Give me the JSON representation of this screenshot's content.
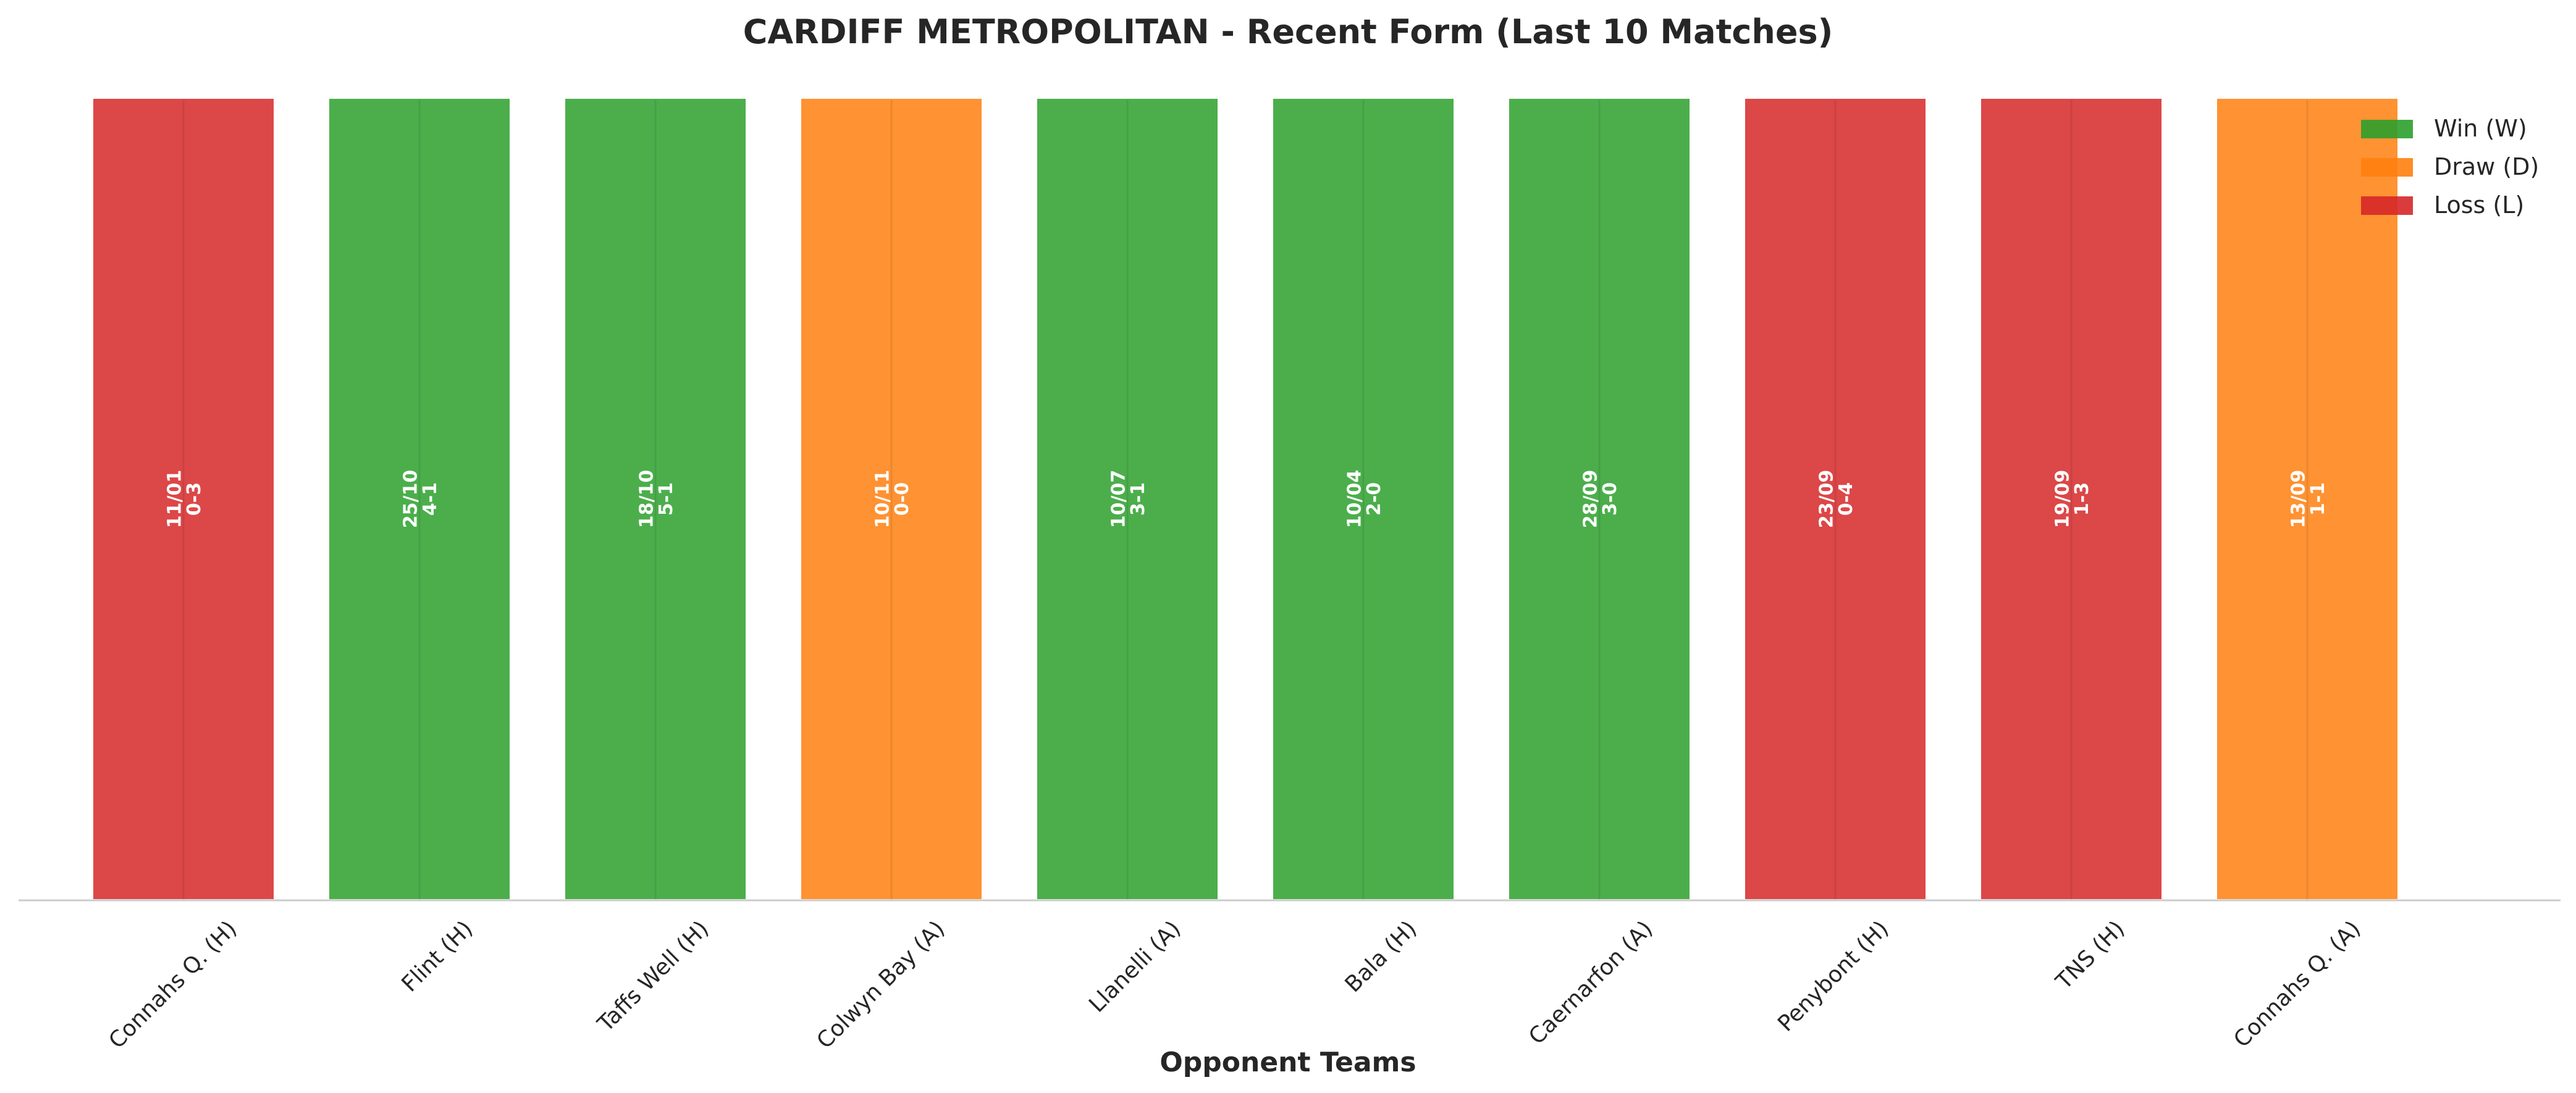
{
  "chart_data": {
    "type": "bar",
    "title": "CARDIFF METROPOLITAN - Recent Form (Last 10 Matches)",
    "xlabel": "Opponent Teams",
    "ylabel": "",
    "categories": [
      "Connahs Q. (H)",
      "Flint (H)",
      "Taffs Well (H)",
      "Colwyn Bay (A)",
      "Llanelli (A)",
      "Bala (H)",
      "Caernarfon (A)",
      "Penybont (H)",
      "TNS (H)",
      "Connahs Q. (A)"
    ],
    "values": [
      1,
      1,
      1,
      1,
      1,
      1,
      1,
      1,
      1,
      1
    ],
    "ylim": [
      0,
      1
    ],
    "results": [
      "L",
      "W",
      "W",
      "D",
      "W",
      "W",
      "W",
      "L",
      "L",
      "D"
    ],
    "dates": [
      "11/01",
      "25/10",
      "18/10",
      "10/11",
      "10/07",
      "10/04",
      "28/09",
      "23/09",
      "19/09",
      "13/09"
    ],
    "scores": [
      "0-3",
      "4-1",
      "5-1",
      "0-0",
      "3-1",
      "2-0",
      "3-0",
      "0-4",
      "1-3",
      "1-1"
    ],
    "legend": {
      "position": "top-right",
      "entries": [
        {
          "key": "W",
          "label": "Win (W)"
        },
        {
          "key": "D",
          "label": "Draw (D)"
        },
        {
          "key": "L",
          "label": "Loss (L)"
        }
      ]
    },
    "grid": false,
    "colors": {
      "W": "#2ca02c",
      "D": "#ff7f0e",
      "L": "#d62728"
    }
  }
}
